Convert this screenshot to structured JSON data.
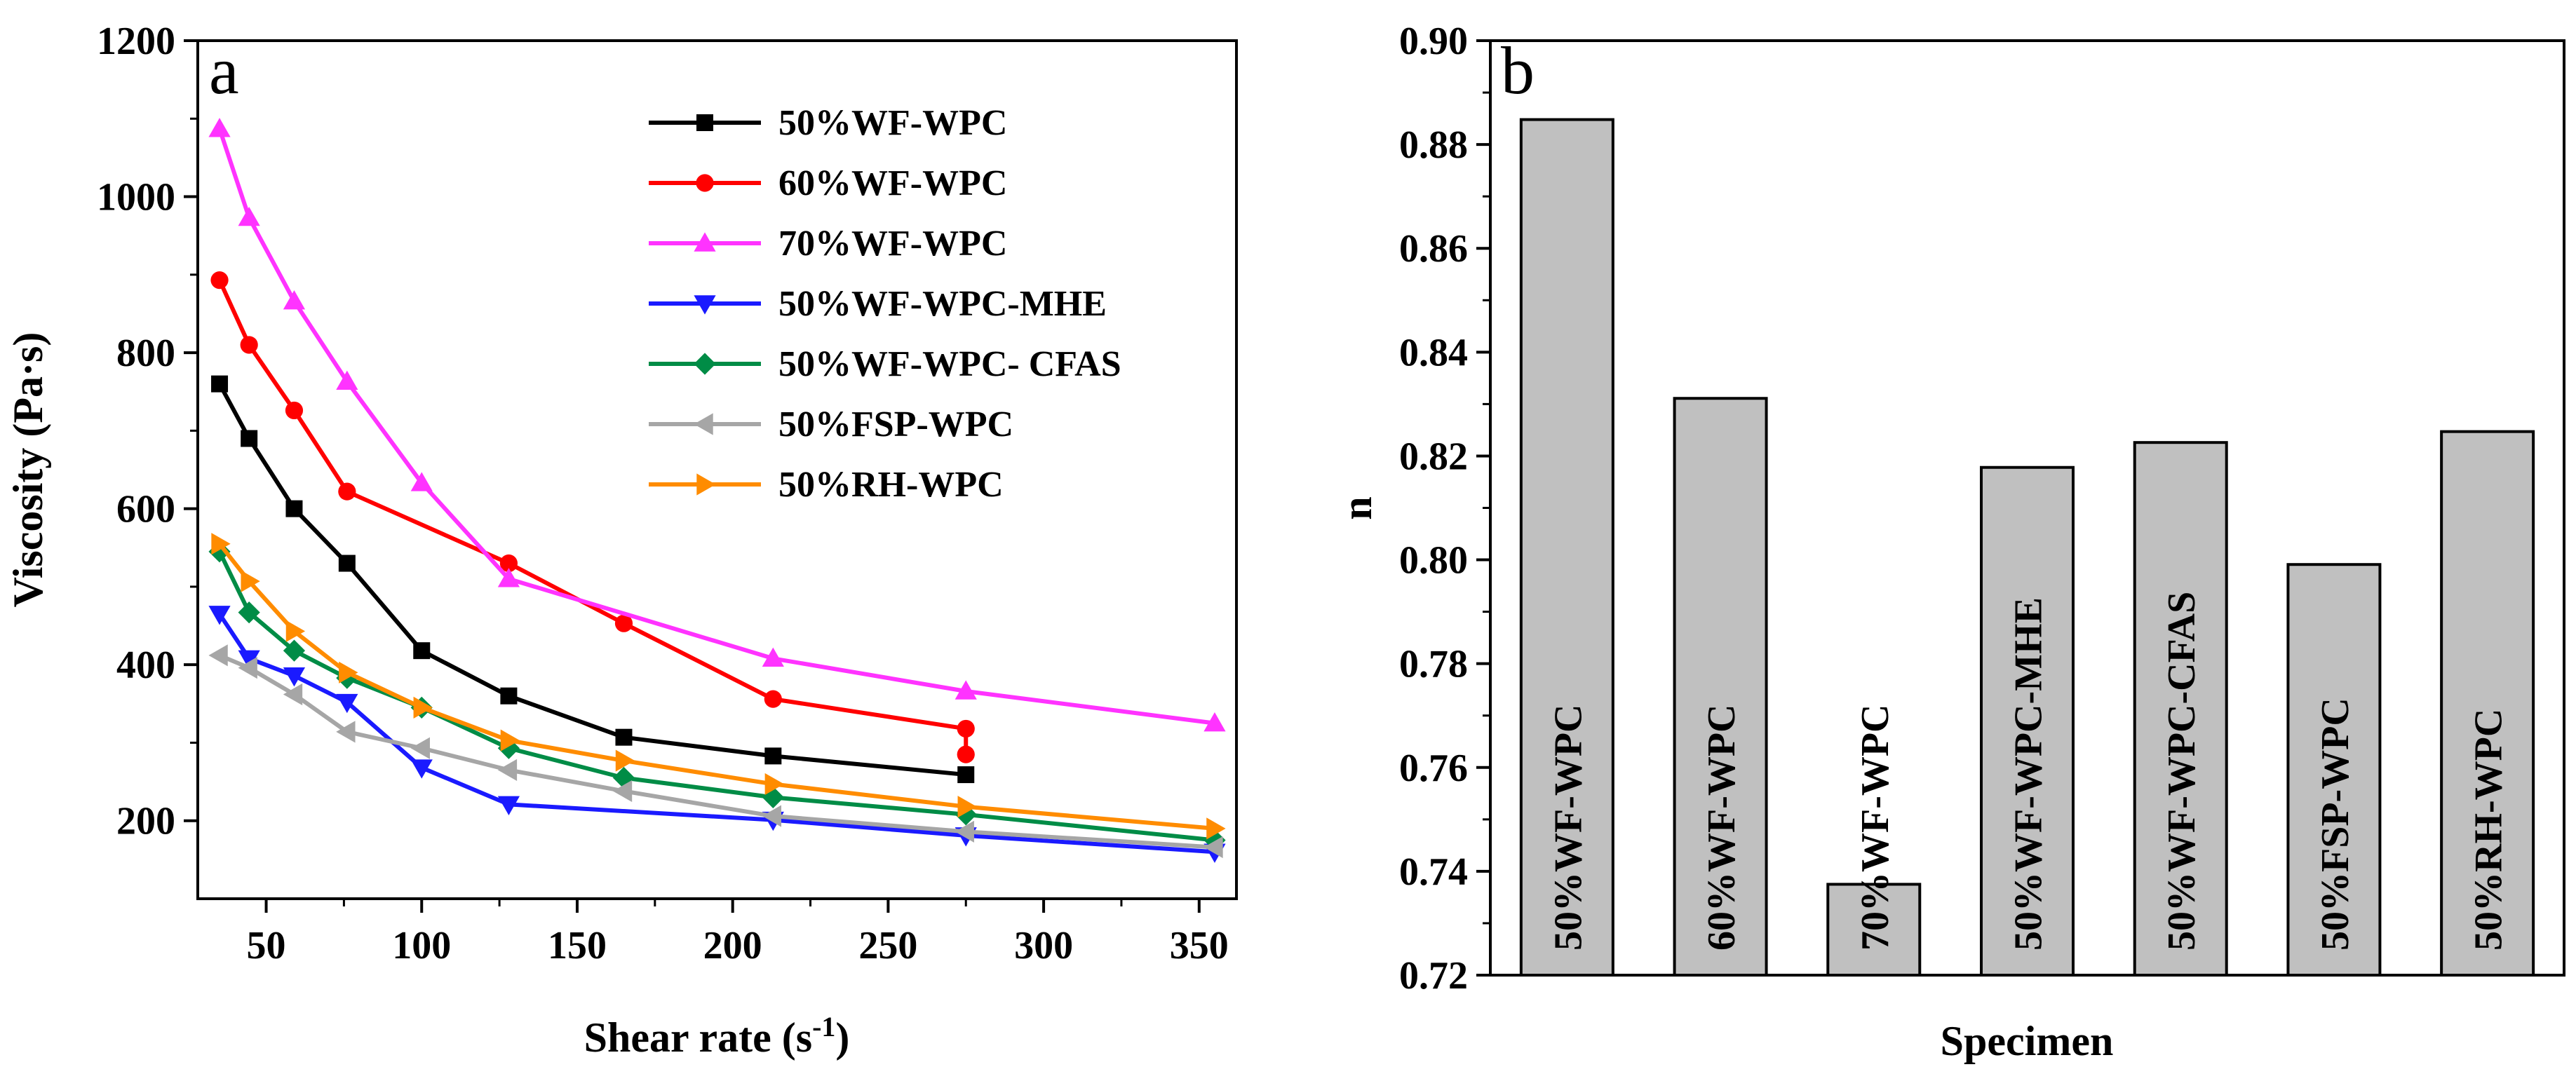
{
  "chart_data": [
    {
      "panel": "a",
      "type": "line",
      "title": "",
      "xlabel": "Shear rate (s",
      "xlabel_sup": "-1",
      "xlabel_end": ")",
      "ylabel": "Viscosity (Pa·s)",
      "xlim": [
        28,
        362
      ],
      "ylim": [
        100,
        1200
      ],
      "xticks": [
        50,
        100,
        150,
        200,
        250,
        300,
        350
      ],
      "yticks": [
        200,
        400,
        600,
        800,
        1000,
        1200
      ],
      "legend_position": "top-right",
      "series": [
        {
          "name": "50%WF-WPC",
          "color": "#000000",
          "marker": "square",
          "x": [
            35,
            44.5,
            59,
            76,
            100,
            128,
            165,
            213,
            275
          ],
          "y": [
            760,
            690,
            600,
            530,
            418,
            360,
            307,
            283,
            259
          ]
        },
        {
          "name": "60%WF-WPC",
          "color": "#ff0000",
          "marker": "circle",
          "x": [
            35,
            44.5,
            59,
            76,
            128,
            165,
            213,
            275,
            275
          ],
          "y": [
            893,
            810,
            726,
            622,
            530,
            453,
            356,
            318,
            285
          ]
        },
        {
          "name": "70%WF-WPC",
          "color": "#ff33ff",
          "marker": "triangle-up",
          "x": [
            35,
            44.5,
            59,
            76,
            100,
            128,
            213,
            275,
            355
          ],
          "y": [
            1087,
            973,
            866,
            763,
            633,
            510,
            408,
            366,
            325
          ]
        },
        {
          "name": "50%WF-WPC-MHE",
          "color": "#1a1aff",
          "marker": "triangle-down",
          "x": [
            35,
            44.5,
            59,
            76,
            100,
            128,
            213,
            275,
            355
          ],
          "y": [
            465,
            408,
            386,
            352,
            268,
            221,
            201,
            181,
            160
          ]
        },
        {
          "name": "50%WF-WPC- CFAS",
          "color": "#008c46",
          "marker": "diamond",
          "x": [
            35,
            44.5,
            59,
            76,
            100,
            128,
            165,
            213,
            275,
            355
          ],
          "y": [
            545,
            467,
            418,
            383,
            345,
            293,
            255,
            230,
            208,
            175
          ]
        },
        {
          "name": "50%FSP-WPC",
          "color": "#a6a6a6",
          "marker": "triangle-left",
          "x": [
            35,
            44.5,
            59,
            76,
            100,
            128,
            165,
            213,
            275,
            355
          ],
          "y": [
            412,
            396,
            362,
            314,
            293,
            265,
            238,
            206,
            186,
            166
          ]
        },
        {
          "name": "50%RH-WPC",
          "color": "#ff8c00",
          "marker": "triangle-right",
          "x": [
            35,
            44.5,
            59,
            76,
            100,
            128,
            165,
            213,
            275,
            355
          ],
          "y": [
            555,
            507,
            443,
            390,
            345,
            303,
            277,
            247,
            218,
            190
          ]
        }
      ]
    },
    {
      "panel": "b",
      "type": "bar",
      "title": "",
      "xlabel": "Specimen",
      "ylabel": "n",
      "ylim": [
        0.72,
        0.9
      ],
      "yticks": [
        0.72,
        0.74,
        0.76,
        0.78,
        0.8,
        0.82,
        0.84,
        0.86,
        0.88,
        0.9
      ],
      "bar_color": "#c0c0c0",
      "categories": [
        "50%WF-WPC",
        "60%WF-WPC",
        "70%WF-WPC",
        "50%WF-WPC-MHE",
        "50%WF-WPC-CFAS",
        "50%FSP-WPC",
        "50%RH-WPC"
      ],
      "values": [
        0.8848,
        0.8311,
        0.7375,
        0.8178,
        0.8226,
        0.7991,
        0.8247
      ]
    }
  ]
}
